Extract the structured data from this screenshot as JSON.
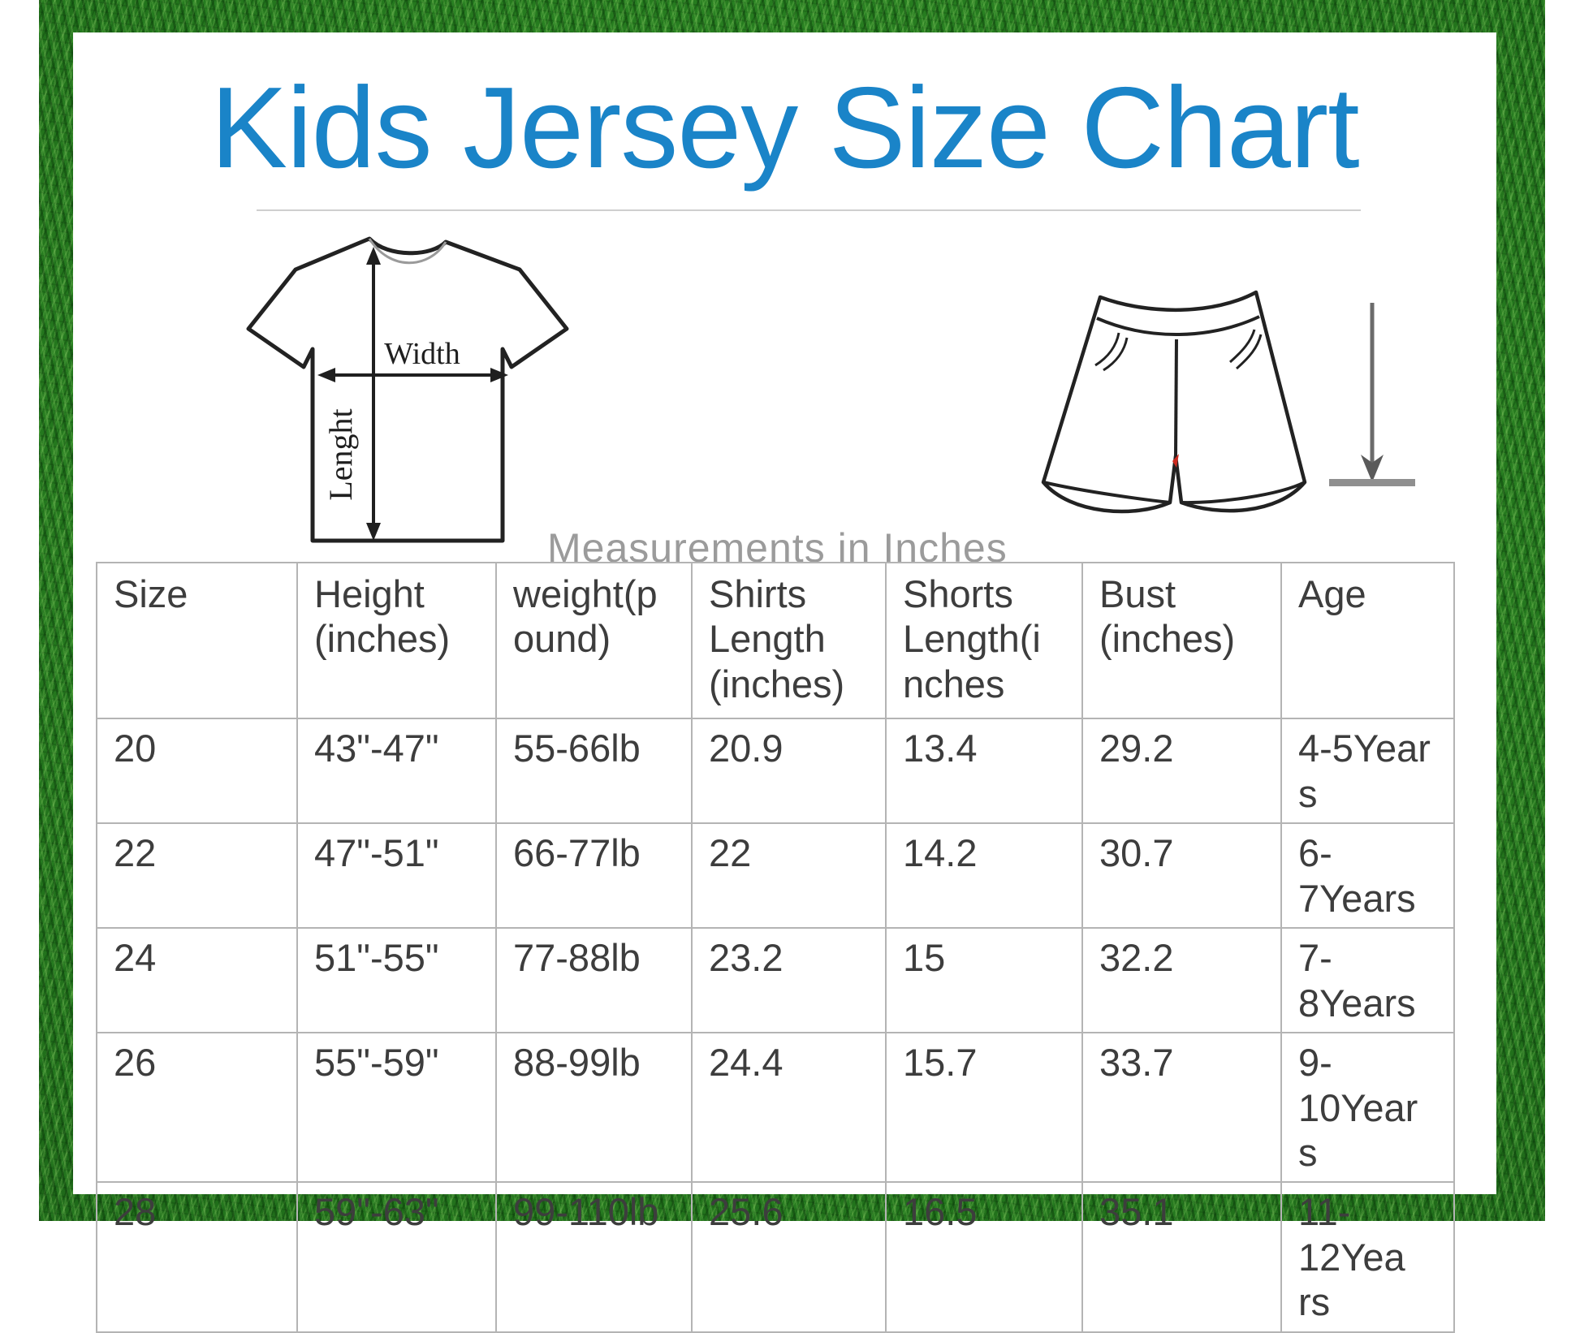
{
  "title": "Kids Jersey Size Chart",
  "measurements_note": "Measurements in Inches",
  "diagram": {
    "shirt_width_label": "Width",
    "shirt_length_label": "Lenght"
  },
  "colors": {
    "title_blue": "#1a84c8",
    "grass_green": "#26761e",
    "table_border_gray": "#b4b4b4",
    "table_text_gray": "#3d3d3d",
    "note_gray": "#9b9b9b",
    "line_art": "#222222",
    "shorts_accent_red": "#cc2a1e"
  },
  "table": {
    "headers": [
      "Size",
      "Height\n(inches)",
      "weight(p\nound)",
      "Shirts\nLength\n(inches)",
      "Shorts\nLength(i\nnches",
      "Bust\n(inches)",
      "Age"
    ],
    "rows": [
      [
        "20",
        "43\"-47\"",
        "55-66lb",
        "20.9",
        "13.4",
        "29.2",
        "4-5Year\ns"
      ],
      [
        "22",
        "47\"-51\"",
        "66-77lb",
        "22",
        "14.2",
        "30.7",
        "6-7Years"
      ],
      [
        "24",
        "51\"-55\"",
        "77-88lb",
        "23.2",
        "15",
        "32.2",
        "7-8Years"
      ],
      [
        "26",
        "55\"-59\"",
        "88-99lb",
        "24.4",
        "15.7",
        "33.7",
        "9-10Year\ns"
      ],
      [
        "28",
        "59\"-63\"",
        "99-110lb",
        "25.6",
        "16.5",
        "35.1",
        "11-12Yea\nrs"
      ]
    ]
  },
  "chart_data": {
    "type": "table",
    "title": "Kids Jersey Size Chart",
    "note": "Measurements in Inches",
    "columns": [
      "Size",
      "Height (inches)",
      "weight(pound)",
      "Shirts Length (inches)",
      "Shorts Length(inches",
      "Bust (inches)",
      "Age"
    ],
    "rows": [
      [
        "20",
        "43\"-47\"",
        "55-66lb",
        "20.9",
        "13.4",
        "29.2",
        "4-5Years"
      ],
      [
        "22",
        "47\"-51\"",
        "66-77lb",
        "22",
        "14.2",
        "30.7",
        "6-7Years"
      ],
      [
        "24",
        "51\"-55\"",
        "77-88lb",
        "23.2",
        "15",
        "32.2",
        "7-8Years"
      ],
      [
        "26",
        "55\"-59\"",
        "88-99lb",
        "24.4",
        "15.7",
        "33.7",
        "9-10Years"
      ],
      [
        "28",
        "59\"-63\"",
        "99-110lb",
        "25.6",
        "16.5",
        "35.1",
        "11-12Years"
      ]
    ]
  }
}
